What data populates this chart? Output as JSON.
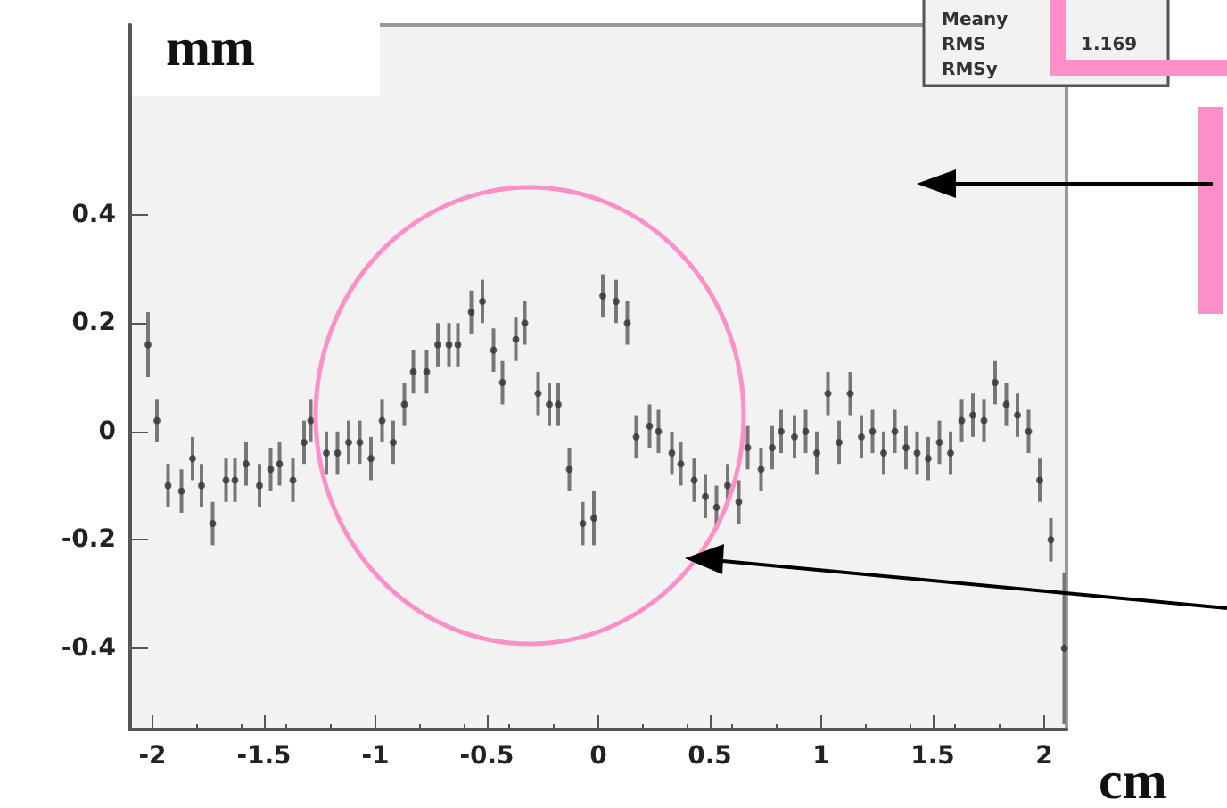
{
  "chart_data": {
    "type": "scatter",
    "xlabel": "cm",
    "ylabel": "mm",
    "annotations": [
      "Meany",
      "RMS",
      "1.169",
      "RMSy"
    ],
    "xlim": [
      -2.1,
      2.1
    ],
    "ylim": [
      -0.55,
      0.75
    ],
    "xticks": [
      -2,
      -1.5,
      -1,
      -0.5,
      0,
      0.5,
      1,
      1.5,
      2
    ],
    "yticks": [
      -0.4,
      -0.2,
      0,
      0.2,
      0.4
    ],
    "grid": false,
    "marker": "circle",
    "series": [
      {
        "color": "#333333",
        "x": [
          -2.02,
          -1.98,
          -1.93,
          -1.87,
          -1.82,
          -1.78,
          -1.73,
          -1.67,
          -1.63,
          -1.58,
          -1.52,
          -1.47,
          -1.43,
          -1.37,
          -1.32,
          -1.29,
          -1.22,
          -1.17,
          -1.12,
          -1.07,
          -1.02,
          -0.97,
          -0.92,
          -0.87,
          -0.83,
          -0.77,
          -0.72,
          -0.67,
          -0.63,
          -0.57,
          -0.52,
          -0.47,
          -0.43,
          -0.37,
          -0.33,
          -0.27,
          -0.22,
          -0.18,
          -0.13,
          -0.07,
          -0.02,
          0.02,
          0.08,
          0.13,
          0.17,
          0.23,
          0.27,
          0.33,
          0.37,
          0.43,
          0.48,
          0.53,
          0.58,
          0.63,
          0.67,
          0.73,
          0.78,
          0.82,
          0.88,
          0.93,
          0.98,
          1.03,
          1.08,
          1.13,
          1.18,
          1.23,
          1.28,
          1.33,
          1.38,
          1.43,
          1.48,
          1.53,
          1.58,
          1.63,
          1.68,
          1.73,
          1.78,
          1.83,
          1.88,
          1.93,
          1.98,
          2.03,
          2.09
        ],
        "values": [
          0.16,
          0.02,
          -0.1,
          -0.11,
          -0.05,
          -0.1,
          -0.17,
          -0.09,
          -0.09,
          -0.06,
          -0.1,
          -0.07,
          -0.06,
          -0.09,
          -0.02,
          0.02,
          -0.04,
          -0.04,
          -0.02,
          -0.02,
          -0.05,
          0.02,
          -0.02,
          0.05,
          0.11,
          0.11,
          0.16,
          0.16,
          0.16,
          0.22,
          0.24,
          0.15,
          0.09,
          0.17,
          0.2,
          0.07,
          0.05,
          0.05,
          -0.07,
          -0.17,
          -0.16,
          0.25,
          0.24,
          0.2,
          -0.01,
          0.01,
          0,
          -0.04,
          -0.06,
          -0.09,
          -0.12,
          -0.14,
          -0.1,
          -0.13,
          -0.03,
          -0.07,
          -0.03,
          0,
          -0.01,
          0,
          -0.04,
          0.07,
          -0.02,
          0.07,
          -0.01,
          0,
          -0.04,
          0,
          -0.03,
          -0.04,
          -0.05,
          -0.02,
          -0.04,
          0.02,
          0.03,
          0.02,
          0.09,
          0.05,
          0.03,
          0,
          -0.09,
          -0.2,
          -0.4
        ],
        "errors": [
          0.06,
          0.04,
          0.04,
          0.04,
          0.04,
          0.04,
          0.04,
          0.04,
          0.04,
          0.04,
          0.04,
          0.04,
          0.04,
          0.04,
          0.04,
          0.04,
          0.04,
          0.04,
          0.04,
          0.04,
          0.04,
          0.04,
          0.04,
          0.04,
          0.04,
          0.04,
          0.04,
          0.04,
          0.04,
          0.04,
          0.04,
          0.04,
          0.04,
          0.04,
          0.04,
          0.04,
          0.04,
          0.04,
          0.04,
          0.04,
          0.05,
          0.04,
          0.04,
          0.04,
          0.04,
          0.04,
          0.04,
          0.04,
          0.04,
          0.04,
          0.04,
          0.04,
          0.04,
          0.04,
          0.04,
          0.04,
          0.04,
          0.04,
          0.04,
          0.04,
          0.04,
          0.04,
          0.04,
          0.04,
          0.04,
          0.04,
          0.04,
          0.04,
          0.04,
          0.04,
          0.04,
          0.04,
          0.04,
          0.04,
          0.04,
          0.04,
          0.04,
          0.04,
          0.04,
          0.04,
          0.04,
          0.04,
          0.14
        ]
      }
    ]
  }
}
